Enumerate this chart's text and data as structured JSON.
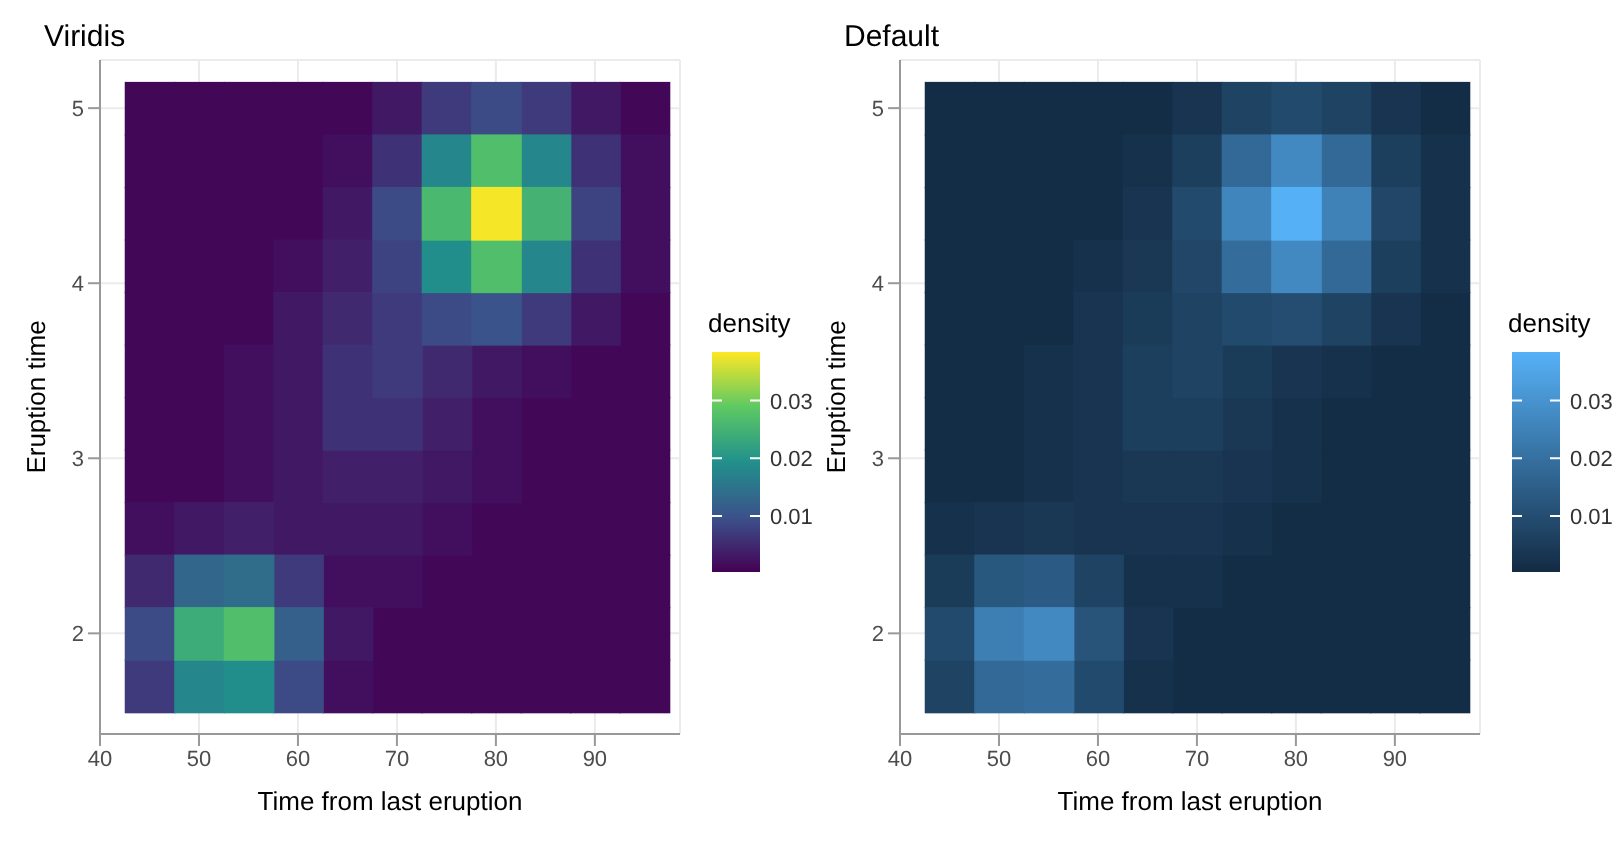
{
  "chart_data": [
    {
      "type": "scatter",
      "marker": "square",
      "title": "Viridis",
      "xlabel": "Time from last eruption",
      "ylabel": "Eruption time",
      "clabel": "density",
      "colors": [
        "#440154",
        "#3b528b",
        "#21908c",
        "#5dc963",
        "#fde725"
      ],
      "series": [
        {
          "x": [
            45,
            50,
            55,
            60,
            65,
            95,
            45,
            50,
            55,
            60,
            45,
            50,
            55,
            60,
            45,
            50,
            55,
            45,
            50,
            55,
            95,
            45,
            50,
            90,
            95,
            45,
            50,
            85,
            90,
            95,
            45,
            50,
            85,
            90,
            95,
            80,
            85,
            90,
            95,
            75,
            80,
            85,
            90,
            95,
            70,
            75,
            80,
            85,
            90,
            95,
            70,
            75,
            80,
            85,
            90,
            95
          ],
          "values": [
            5.0,
            5.0,
            5.0,
            5.0,
            5.0,
            5.0,
            4.7,
            4.7,
            4.7,
            4.7,
            4.4,
            4.4,
            4.4,
            4.4,
            4.1,
            4.1,
            4.1,
            3.8,
            3.8,
            3.8,
            3.8,
            3.5,
            3.5,
            3.5,
            3.5,
            3.2,
            3.2,
            3.2,
            3.2,
            3.2,
            2.9,
            2.9,
            2.9,
            2.9,
            2.9,
            2.6,
            2.6,
            2.6,
            2.6,
            2.3,
            2.3,
            2.3,
            2.3,
            2.3,
            2.0,
            2.0,
            2.0,
            2.0,
            2.0,
            2.0,
            1.7,
            1.7,
            1.7,
            1.7,
            1.7,
            1.7
          ],
          "cvalues": [
            0.001,
            0.001,
            0.001,
            0.001,
            0.001,
            0.001,
            0.001,
            0.001,
            0.001,
            0.001,
            0.001,
            0.001,
            0.001,
            0.001,
            0.001,
            0.001,
            0.001,
            0.001,
            0.001,
            0.001,
            0.001,
            0.001,
            0.001,
            0.001,
            0.001,
            0.001,
            0.001,
            0.001,
            0.001,
            0.001,
            0.001,
            0.001,
            0.001,
            0.001,
            0.001,
            0.001,
            0.001,
            0.001,
            0.001,
            0.001,
            0.001,
            0.001,
            0.001,
            0.001,
            0.001,
            0.001,
            0.001,
            0.001,
            0.001,
            0.001,
            0.001,
            0.001,
            0.001,
            0.001,
            0.001,
            0.001
          ]
        },
        {
          "x": [
            65,
            95,
            95,
            60,
            95,
            55,
            85,
            55,
            80,
            55,
            80,
            45,
            75,
            65,
            70,
            65
          ],
          "values": [
            4.7,
            4.7,
            4.4,
            4.1,
            4.1,
            3.5,
            3.5,
            3.2,
            3.2,
            2.9,
            2.9,
            2.6,
            2.6,
            2.3,
            2.3,
            1.7
          ],
          "cvalues": [
            0.002,
            0.002,
            0.002,
            0.002,
            0.002,
            0.002,
            0.002,
            0.002,
            0.002,
            0.002,
            0.002,
            0.002,
            0.002,
            0.002,
            0.002,
            0.002
          ]
        },
        {
          "x": [
            70,
            90,
            65,
            60,
            90,
            60,
            80,
            60,
            60,
            75,
            50,
            60,
            65,
            70,
            65
          ],
          "values": [
            5.0,
            5.0,
            4.4,
            3.8,
            3.8,
            3.5,
            3.5,
            3.2,
            2.9,
            2.9,
            2.6,
            2.6,
            2.6,
            2.6,
            2.0
          ],
          "cvalues": [
            0.003,
            0.003,
            0.003,
            0.003,
            0.003,
            0.003,
            0.003,
            0.003,
            0.003,
            0.003,
            0.003,
            0.003,
            0.003,
            0.003,
            0.003
          ]
        },
        {
          "x": [
            65,
            75,
            65,
            70,
            55
          ],
          "values": [
            4.1,
            3.2,
            2.9,
            2.9,
            2.6
          ],
          "cvalues": [
            0.004,
            0.004,
            0.004,
            0.004,
            0.004
          ]
        },
        {
          "x": [
            65,
            75,
            45
          ],
          "values": [
            3.8,
            3.5,
            2.3
          ],
          "cvalues": [
            0.005,
            0.005,
            0.005
          ]
        },
        {
          "x": [
            70,
            90,
            90,
            65,
            65,
            70
          ],
          "values": [
            4.7,
            4.7,
            4.1,
            3.5,
            3.2,
            3.2
          ],
          "cvalues": [
            0.006,
            0.006,
            0.006,
            0.006,
            0.006,
            0.006
          ]
        },
        {
          "x": [
            75,
            85,
            70,
            85,
            70,
            60,
            45
          ],
          "values": [
            5.0,
            5.0,
            3.8,
            3.8,
            3.5,
            2.3,
            1.7
          ],
          "cvalues": [
            0.007,
            0.007,
            0.007,
            0.007,
            0.007,
            0.007,
            0.007
          ]
        },
        {
          "x": [
            90,
            70
          ],
          "values": [
            4.4,
            4.1
          ],
          "cvalues": [
            0.008,
            0.008
          ]
        },
        {
          "x": [
            80,
            70,
            75,
            45,
            60
          ],
          "values": [
            5.0,
            4.4,
            3.8,
            2.0,
            1.7
          ],
          "cvalues": [
            0.009,
            0.009,
            0.009,
            0.009,
            0.009
          ]
        },
        {
          "x": [
            80
          ],
          "values": [
            3.8
          ],
          "cvalues": [
            0.01
          ]
        },
        {
          "x": [
            60
          ],
          "values": [
            2.0
          ],
          "cvalues": [
            0.012
          ]
        },
        {
          "x": [
            50
          ],
          "values": [
            2.3
          ],
          "cvalues": [
            0.013
          ]
        },
        {
          "x": [
            55
          ],
          "values": [
            2.3
          ],
          "cvalues": [
            0.014
          ]
        },
        {
          "x": [
            75,
            85,
            85,
            50
          ],
          "values": [
            4.7,
            4.7,
            4.1,
            1.7
          ],
          "cvalues": [
            0.018,
            0.018,
            0.018,
            0.018
          ]
        },
        {
          "x": [
            75,
            55
          ],
          "values": [
            4.1,
            1.7
          ],
          "cvalues": [
            0.019,
            0.019
          ]
        },
        {
          "x": [
            50
          ],
          "values": [
            2.0
          ],
          "cvalues": [
            0.024
          ]
        },
        {
          "x": [
            85
          ],
          "values": [
            4.4
          ],
          "cvalues": [
            0.025
          ]
        },
        {
          "x": [
            75
          ],
          "values": [
            4.4
          ],
          "cvalues": [
            0.026
          ]
        },
        {
          "x": [
            80,
            80,
            55
          ],
          "values": [
            4.7,
            4.1,
            2.0
          ],
          "cvalues": [
            0.027,
            0.027,
            0.027
          ]
        },
        {
          "x": [
            80
          ],
          "values": [
            4.4
          ],
          "cvalues": [
            0.038
          ]
        }
      ],
      "clim": [
        0.0003,
        0.0384
      ],
      "cticks": [
        0.01,
        0.02,
        0.03
      ],
      "xlim": [
        40,
        98.6
      ],
      "xticks": [
        40,
        50,
        60,
        70,
        80,
        90
      ],
      "ylim": [
        1.425,
        5.275
      ],
      "yticks": [
        2,
        3,
        4,
        5
      ],
      "grid": true
    },
    {
      "type": "scatter",
      "marker": "square",
      "title": "Default",
      "xlabel": "Time from last eruption",
      "ylabel": "Eruption time",
      "clabel": "density",
      "colors": [
        "#132b43",
        "#56b1f7"
      ],
      "series": [
        {
          "x": [
            45,
            50,
            55,
            60,
            65,
            95,
            45,
            50,
            55,
            60,
            45,
            50,
            55,
            60,
            45,
            50,
            55,
            45,
            50,
            55,
            95,
            45,
            50,
            90,
            95,
            45,
            50,
            85,
            90,
            95,
            45,
            50,
            85,
            90,
            95,
            80,
            85,
            90,
            95,
            75,
            80,
            85,
            90,
            95,
            70,
            75,
            80,
            85,
            90,
            95,
            70,
            75,
            80,
            85,
            90,
            95
          ],
          "values": [
            5.0,
            5.0,
            5.0,
            5.0,
            5.0,
            5.0,
            4.7,
            4.7,
            4.7,
            4.7,
            4.4,
            4.4,
            4.4,
            4.4,
            4.1,
            4.1,
            4.1,
            3.8,
            3.8,
            3.8,
            3.8,
            3.5,
            3.5,
            3.5,
            3.5,
            3.2,
            3.2,
            3.2,
            3.2,
            3.2,
            2.9,
            2.9,
            2.9,
            2.9,
            2.9,
            2.6,
            2.6,
            2.6,
            2.6,
            2.3,
            2.3,
            2.3,
            2.3,
            2.3,
            2.0,
            2.0,
            2.0,
            2.0,
            2.0,
            2.0,
            1.7,
            1.7,
            1.7,
            1.7,
            1.7,
            1.7
          ],
          "cvalues": [
            0.001,
            0.001,
            0.001,
            0.001,
            0.001,
            0.001,
            0.001,
            0.001,
            0.001,
            0.001,
            0.001,
            0.001,
            0.001,
            0.001,
            0.001,
            0.001,
            0.001,
            0.001,
            0.001,
            0.001,
            0.001,
            0.001,
            0.001,
            0.001,
            0.001,
            0.001,
            0.001,
            0.001,
            0.001,
            0.001,
            0.001,
            0.001,
            0.001,
            0.001,
            0.001,
            0.001,
            0.001,
            0.001,
            0.001,
            0.001,
            0.001,
            0.001,
            0.001,
            0.001,
            0.001,
            0.001,
            0.001,
            0.001,
            0.001,
            0.001,
            0.001,
            0.001,
            0.001,
            0.001,
            0.001,
            0.001
          ]
        },
        {
          "x": [
            65,
            95,
            95,
            60,
            95,
            55,
            85,
            55,
            80,
            55,
            80,
            45,
            75,
            65,
            70,
            65
          ],
          "values": [
            4.7,
            4.7,
            4.4,
            4.1,
            4.1,
            3.5,
            3.5,
            3.2,
            3.2,
            2.9,
            2.9,
            2.6,
            2.6,
            2.3,
            2.3,
            1.7
          ],
          "cvalues": [
            0.002,
            0.002,
            0.002,
            0.002,
            0.002,
            0.002,
            0.002,
            0.002,
            0.002,
            0.002,
            0.002,
            0.002,
            0.002,
            0.002,
            0.002,
            0.002
          ]
        },
        {
          "x": [
            70,
            90,
            65,
            60,
            90,
            60,
            80,
            60,
            60,
            75,
            50,
            60,
            65,
            70,
            65
          ],
          "values": [
            5.0,
            5.0,
            4.4,
            3.8,
            3.8,
            3.5,
            3.5,
            3.2,
            2.9,
            2.9,
            2.6,
            2.6,
            2.6,
            2.6,
            2.0
          ],
          "cvalues": [
            0.003,
            0.003,
            0.003,
            0.003,
            0.003,
            0.003,
            0.003,
            0.003,
            0.003,
            0.003,
            0.003,
            0.003,
            0.003,
            0.003,
            0.003
          ]
        },
        {
          "x": [
            65,
            75,
            65,
            70,
            55
          ],
          "values": [
            4.1,
            3.2,
            2.9,
            2.9,
            2.6
          ],
          "cvalues": [
            0.004,
            0.004,
            0.004,
            0.004,
            0.004
          ]
        },
        {
          "x": [
            65,
            75,
            45
          ],
          "values": [
            3.8,
            3.5,
            2.3
          ],
          "cvalues": [
            0.005,
            0.005,
            0.005
          ]
        },
        {
          "x": [
            70,
            90,
            90,
            65,
            65,
            70
          ],
          "values": [
            4.7,
            4.7,
            4.1,
            3.5,
            3.2,
            3.2
          ],
          "cvalues": [
            0.006,
            0.006,
            0.006,
            0.006,
            0.006,
            0.006
          ]
        },
        {
          "x": [
            75,
            85,
            70,
            85,
            70,
            60,
            45
          ],
          "values": [
            5.0,
            5.0,
            3.8,
            3.8,
            3.5,
            2.3,
            1.7
          ],
          "cvalues": [
            0.007,
            0.007,
            0.007,
            0.007,
            0.007,
            0.007,
            0.007
          ]
        },
        {
          "x": [
            90,
            70
          ],
          "values": [
            4.4,
            4.1
          ],
          "cvalues": [
            0.008,
            0.008
          ]
        },
        {
          "x": [
            80,
            70,
            75,
            45,
            60
          ],
          "values": [
            5.0,
            4.4,
            3.8,
            2.0,
            1.7
          ],
          "cvalues": [
            0.009,
            0.009,
            0.009,
            0.009,
            0.009
          ]
        },
        {
          "x": [
            80
          ],
          "values": [
            3.8
          ],
          "cvalues": [
            0.01
          ]
        },
        {
          "x": [
            60
          ],
          "values": [
            2.0
          ],
          "cvalues": [
            0.012
          ]
        },
        {
          "x": [
            50
          ],
          "values": [
            2.3
          ],
          "cvalues": [
            0.013
          ]
        },
        {
          "x": [
            55
          ],
          "values": [
            2.3
          ],
          "cvalues": [
            0.014
          ]
        },
        {
          "x": [
            75,
            85,
            85,
            50
          ],
          "values": [
            4.7,
            4.7,
            4.1,
            1.7
          ],
          "cvalues": [
            0.018,
            0.018,
            0.018,
            0.018
          ]
        },
        {
          "x": [
            75,
            55
          ],
          "values": [
            4.1,
            1.7
          ],
          "cvalues": [
            0.019,
            0.019
          ]
        },
        {
          "x": [
            50
          ],
          "values": [
            2.0
          ],
          "cvalues": [
            0.024
          ]
        },
        {
          "x": [
            85
          ],
          "values": [
            4.4
          ],
          "cvalues": [
            0.025
          ]
        },
        {
          "x": [
            75
          ],
          "values": [
            4.4
          ],
          "cvalues": [
            0.026
          ]
        },
        {
          "x": [
            80,
            80,
            55
          ],
          "values": [
            4.7,
            4.1,
            2.0
          ],
          "cvalues": [
            0.027,
            0.027,
            0.027
          ]
        },
        {
          "x": [
            80
          ],
          "values": [
            4.4
          ],
          "cvalues": [
            0.038
          ]
        }
      ],
      "clim": [
        0.0003,
        0.0384
      ],
      "cticks": [
        0.01,
        0.02,
        0.03
      ],
      "xlim": [
        40,
        98.6
      ],
      "xticks": [
        40,
        50,
        60,
        70,
        80,
        90
      ],
      "ylim": [
        1.425,
        5.275
      ],
      "yticks": [
        2,
        3,
        4,
        5
      ],
      "grid": true
    }
  ]
}
